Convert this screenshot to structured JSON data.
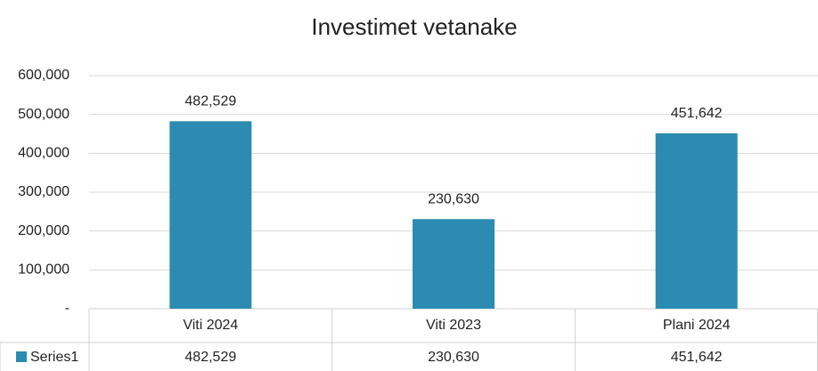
{
  "chart_data": {
    "type": "bar",
    "title": "Investimet vetanake",
    "categories": [
      "Viti 2024",
      "Viti 2023",
      "Plani 2024"
    ],
    "series": [
      {
        "name": "Series1",
        "color": "#2b8bb0",
        "values": [
          482529,
          230630,
          451642
        ],
        "value_labels": [
          "482,529",
          "230,630",
          "451,642"
        ]
      }
    ],
    "ylim": [
      0,
      600000
    ],
    "yticks": [
      {
        "value": 0,
        "label": "-"
      },
      {
        "value": 100000,
        "label": "100,000"
      },
      {
        "value": 200000,
        "label": "200,000"
      },
      {
        "value": 300000,
        "label": "300,000"
      },
      {
        "value": 400000,
        "label": "400,000"
      },
      {
        "value": 500000,
        "label": "500,000"
      },
      {
        "value": 600000,
        "label": "600,000"
      }
    ],
    "grid": true,
    "data_table": true
  }
}
